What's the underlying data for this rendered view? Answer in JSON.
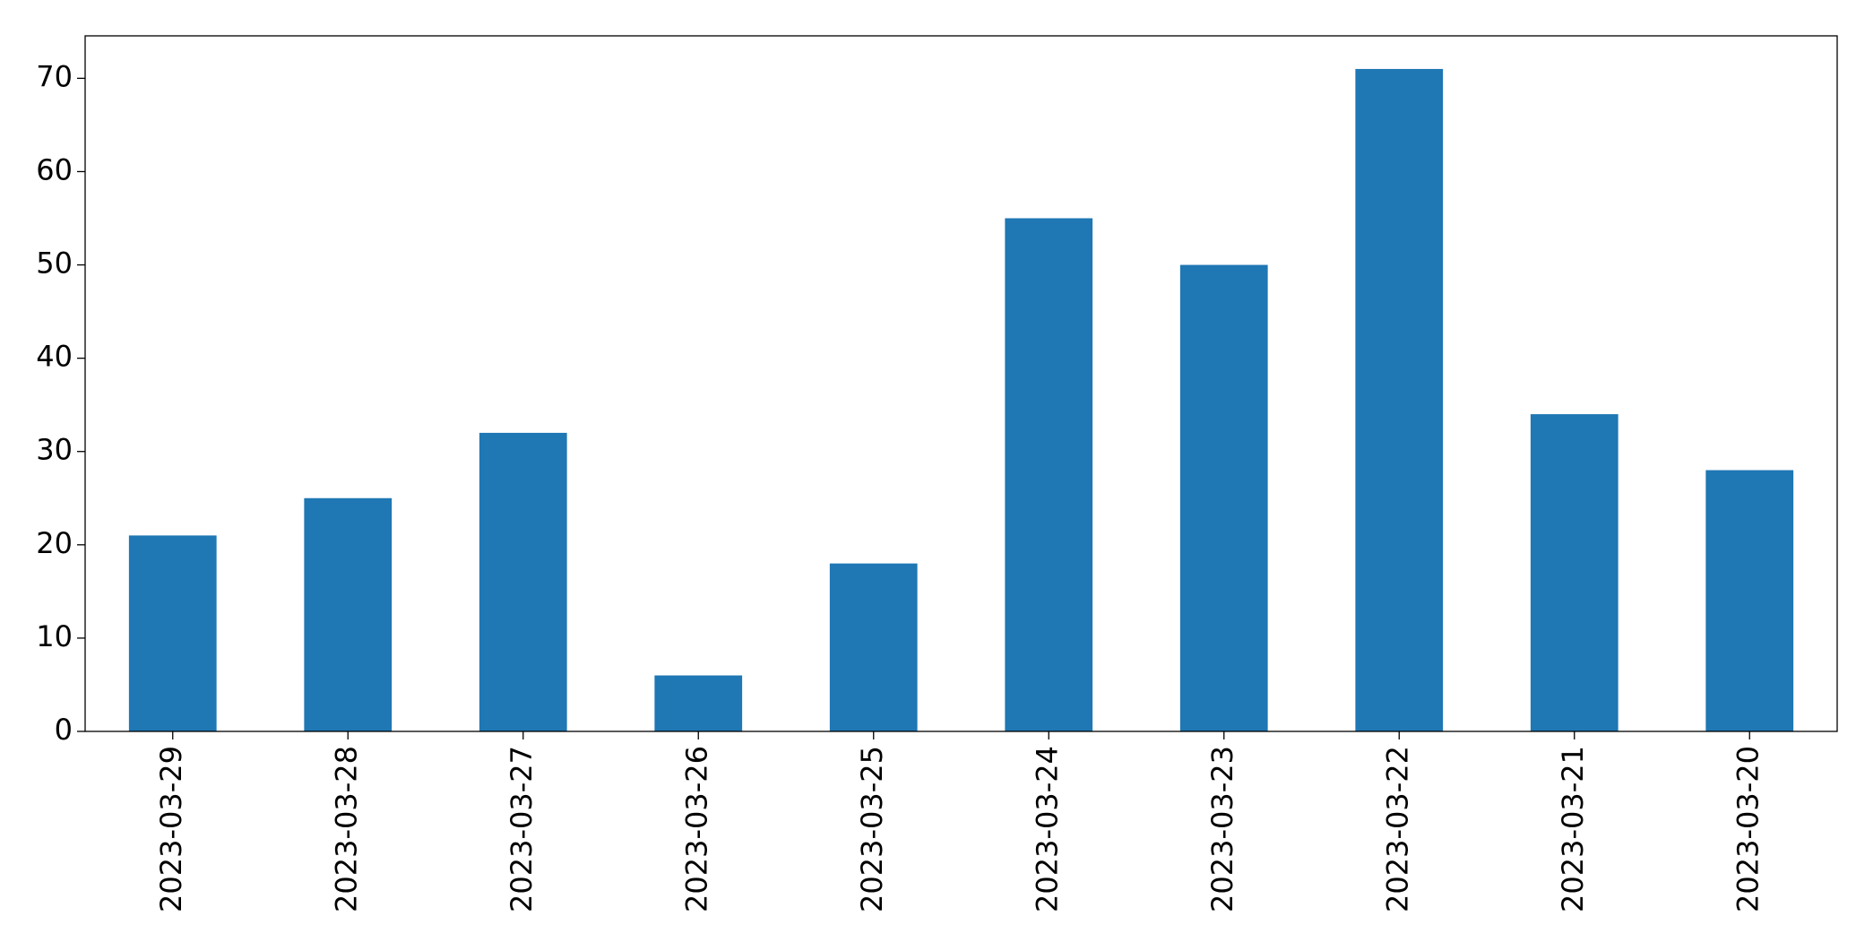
{
  "chart_data": {
    "type": "bar",
    "categories": [
      "2023-03-29",
      "2023-03-28",
      "2023-03-27",
      "2023-03-26",
      "2023-03-25",
      "2023-03-24",
      "2023-03-23",
      "2023-03-22",
      "2023-03-21",
      "2023-03-20"
    ],
    "values": [
      21,
      25,
      32,
      6,
      18,
      55,
      50,
      71,
      34,
      28
    ],
    "color": "#1f77b4",
    "ylim": [
      0,
      74.55
    ],
    "yticks": [
      0,
      10,
      20,
      30,
      40,
      50,
      60,
      70
    ],
    "grid": false
  }
}
